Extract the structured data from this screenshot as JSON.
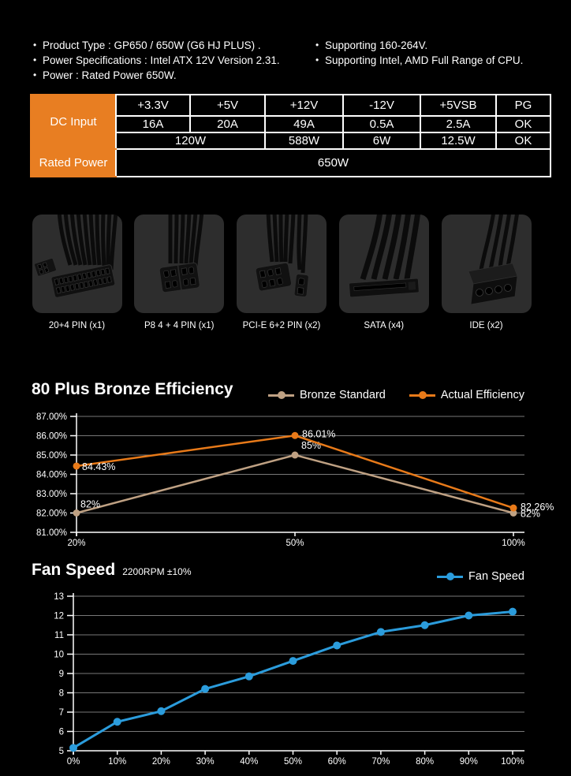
{
  "specs": {
    "left": [
      "Product Type : GP650 / 650W (G6 HJ PLUS) .",
      "Power Specifications : Intel ATX 12V Version 2.31.",
      "Power : Rated Power 650W."
    ],
    "right": [
      "Supporting 160-264V.",
      "Supporting Intel, AMD Full Range of CPU."
    ]
  },
  "spec_table": {
    "row_header_1": "DC Input",
    "row_header_2": "Rated Power",
    "columns": [
      "+3.3V",
      "+5V",
      "+12V",
      "-12V",
      "+5VSB",
      "PG"
    ],
    "amps": [
      "16A",
      "20A",
      "49A",
      "0.5A",
      "2.5A",
      "OK"
    ],
    "watts": [
      "120W",
      "588W",
      "6W",
      "12.5W",
      "OK"
    ],
    "rated": "650W"
  },
  "connectors": {
    "items": [
      {
        "icon": "atx-20-4-pin-connector",
        "label": "20+4 PIN (x1)"
      },
      {
        "icon": "p8-4-4-pin-connector",
        "label": "P8 4 + 4 PIN (x1)"
      },
      {
        "icon": "pcie-6-2-pin-connector",
        "label": "PCI-E 6+2 PIN (x2)"
      },
      {
        "icon": "sata-connector",
        "label": "SATA (x4)"
      },
      {
        "icon": "ide-connector",
        "label": "IDE (x2)"
      }
    ]
  },
  "colors": {
    "table_orange": "#E87E22",
    "grid_gray": "#787878",
    "axis_white": "#ffffff",
    "tile_gray": "#2D2D2D"
  },
  "chart_data": [
    {
      "type": "line",
      "title": "80 Plus Bronze Efficiency",
      "categories": [
        "20%",
        "50%",
        "100%"
      ],
      "y_ticks": [
        "87.00%",
        "86.00%",
        "85.00%",
        "84.00%",
        "83.00%",
        "82.00%",
        "81.00%"
      ],
      "ylim": [
        81,
        87
      ],
      "grid": true,
      "legend_position": "top-right",
      "series": [
        {
          "name": "Bronze Standard",
          "color": "#BFA183",
          "values": [
            82,
            85,
            82
          ],
          "labels": [
            "82%",
            "85%",
            "82%"
          ]
        },
        {
          "name": "Actual Efficiency",
          "color": "#E87A19",
          "values": [
            84.43,
            86.01,
            82.26
          ],
          "labels": [
            "84.43%",
            "86.01%",
            "82.26%"
          ]
        }
      ]
    },
    {
      "type": "line",
      "title": "Fan Speed",
      "subtitle": "2200RPM ±10%",
      "categories": [
        "0%",
        "10%",
        "20%",
        "30%",
        "40%",
        "50%",
        "60%",
        "70%",
        "80%",
        "90%",
        "100%"
      ],
      "y_ticks": [
        "13",
        "12",
        "11",
        "10",
        "9",
        "8",
        "7",
        "6",
        "5"
      ],
      "ylim": [
        5,
        13
      ],
      "grid": true,
      "legend_position": "top-right",
      "series": [
        {
          "name": "Fan Speed",
          "color": "#2B9CDC",
          "values": [
            5.15,
            6.5,
            7.05,
            8.2,
            8.85,
            9.65,
            10.45,
            11.15,
            11.5,
            12,
            12.2
          ]
        }
      ]
    }
  ]
}
